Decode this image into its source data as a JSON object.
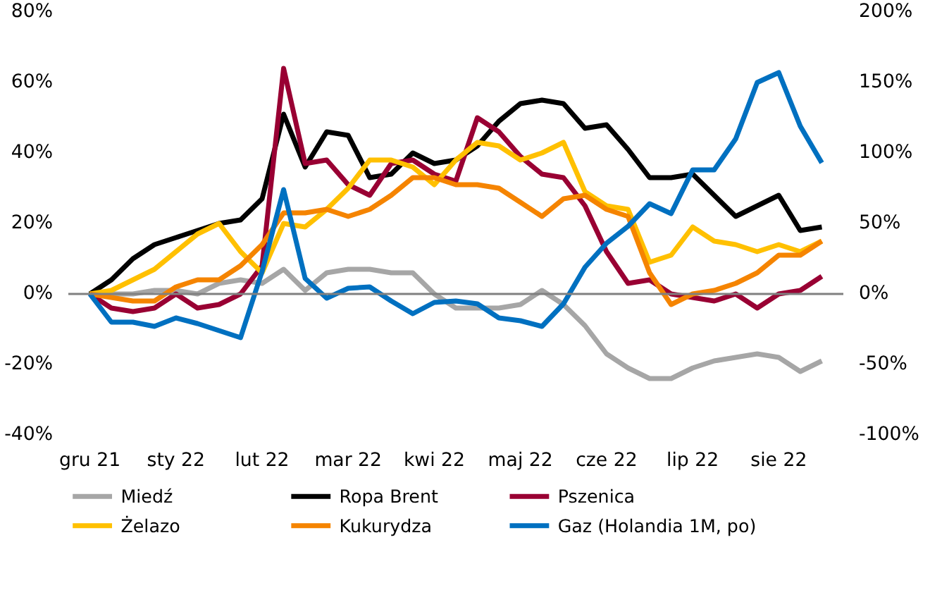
{
  "chart_data": {
    "type": "line",
    "categories": [
      "gru 21",
      null,
      null,
      null,
      "sty 22",
      null,
      null,
      null,
      "lut 22",
      null,
      null,
      null,
      "mar 22",
      null,
      null,
      null,
      "kwi 22",
      null,
      null,
      null,
      "maj 22",
      null,
      null,
      null,
      "cze 22",
      null,
      null,
      null,
      "lip 22",
      null,
      null,
      null,
      "sie 22",
      null,
      null
    ],
    "ylim": [
      -40,
      80
    ],
    "yticks": [
      {
        "value": -40,
        "label": "-40%"
      },
      {
        "value": -20,
        "label": "-20%"
      },
      {
        "value": 0,
        "label": "0%"
      },
      {
        "value": 20,
        "label": "20%"
      },
      {
        "value": 40,
        "label": "40%"
      },
      {
        "value": 60,
        "label": "60%"
      },
      {
        "value": 80,
        "label": "80%"
      }
    ],
    "y2lim": [
      -100,
      200
    ],
    "y2ticks": [
      {
        "value": -100,
        "label": "-100%"
      },
      {
        "value": -50,
        "label": "-50%"
      },
      {
        "value": 0,
        "label": "0%"
      },
      {
        "value": 50,
        "label": "50%"
      },
      {
        "value": 100,
        "label": "100%"
      },
      {
        "value": 150,
        "label": "150%"
      },
      {
        "value": 200,
        "label": "200%"
      }
    ],
    "grid": false,
    "legend": "bottom",
    "line_style": "solid",
    "ref_lines": [
      {
        "axis": "y",
        "value": 0,
        "color": "#808080"
      }
    ],
    "series": [
      {
        "name": "Miedź",
        "color": "#a6a6a6",
        "values": [
          0,
          0,
          0,
          1,
          1,
          0,
          3,
          4,
          3,
          7,
          1,
          6,
          7,
          7,
          6,
          6,
          0,
          -4,
          -4,
          -4,
          -3,
          1,
          -3,
          -9,
          -17,
          -21,
          -24,
          -24,
          -21,
          -19,
          -18,
          -17,
          -18,
          -22,
          -19
        ]
      },
      {
        "name": "Ropa Brent",
        "color": "#000000",
        "values": [
          0,
          4,
          10,
          14,
          16,
          18,
          20,
          21,
          27,
          51,
          36,
          46,
          45,
          33,
          34,
          40,
          37,
          38,
          42,
          49,
          54,
          55,
          54,
          47,
          48,
          41,
          33,
          33,
          34,
          28,
          22,
          25,
          28,
          18,
          19
        ]
      },
      {
        "name": "Pszenica",
        "color": "#990033",
        "values": [
          0,
          -4,
          -5,
          -4,
          0,
          -4,
          -3,
          0,
          8,
          64,
          37,
          38,
          31,
          28,
          37,
          38,
          34,
          32,
          50,
          46,
          39,
          34,
          33,
          25,
          12,
          3,
          4,
          0,
          -1,
          -2,
          0,
          -4,
          0,
          1,
          5
        ]
      },
      {
        "name": "Żelazo",
        "color": "#ffc000",
        "values": [
          0,
          1,
          4,
          7,
          12,
          17,
          20,
          12,
          6,
          20,
          19,
          24,
          30,
          38,
          38,
          36,
          31,
          38,
          43,
          42,
          38,
          40,
          43,
          29,
          25,
          24,
          9,
          11,
          19,
          15,
          14,
          12,
          14,
          12,
          15
        ]
      },
      {
        "name": "Kukurydza",
        "color": "#f58400",
        "values": [
          0,
          -1,
          -2,
          -2,
          2,
          4,
          4,
          8,
          14,
          23,
          23,
          24,
          22,
          24,
          28,
          33,
          33,
          31,
          31,
          30,
          26,
          22,
          27,
          28,
          24,
          22,
          6,
          -3,
          0,
          1,
          3,
          6,
          11,
          11,
          15
        ]
      },
      {
        "name": "Gaz (Holandia 1M, po)",
        "color": "#0070c0",
        "axis": "y2",
        "values": [
          0,
          -20,
          -20,
          -23,
          -17,
          -21,
          -26,
          -31,
          16,
          74,
          11,
          -3,
          4,
          5,
          -5,
          -14,
          -6,
          -5,
          -7,
          -17,
          -19,
          -23,
          -7,
          19,
          36,
          48,
          64,
          57,
          88,
          88,
          110,
          150,
          157,
          119,
          93
        ]
      }
    ]
  }
}
